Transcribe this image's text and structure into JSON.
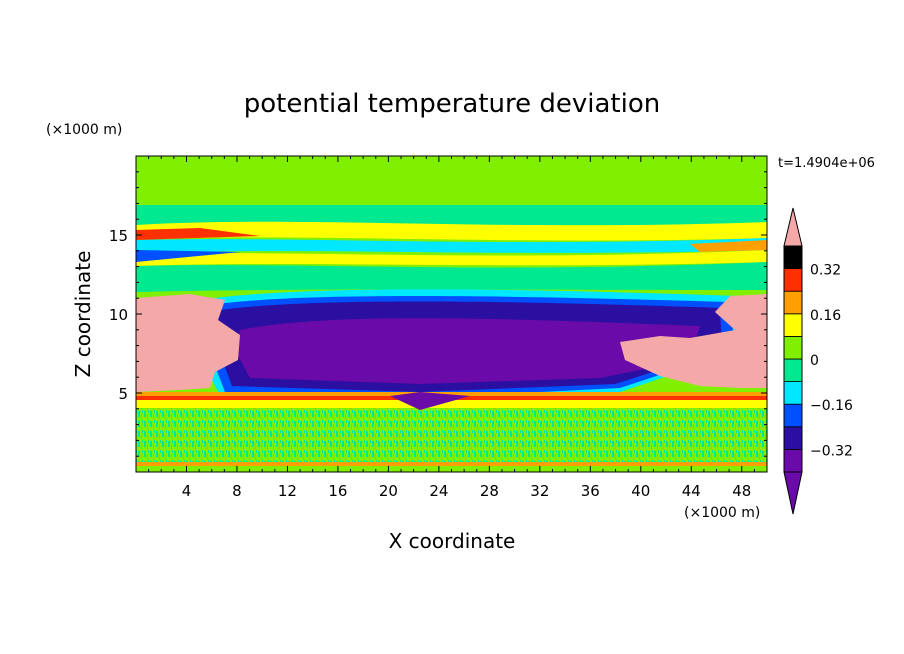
{
  "chart_data": {
    "type": "heatmap",
    "title": "potential temperature deviation",
    "xlabel": "X coordinate",
    "ylabel": "Z coordinate",
    "x_unit": "(×1000 m)",
    "y_unit": "(×1000 m)",
    "time_label": "t=1.4904e+06",
    "xlim": [
      0,
      50
    ],
    "ylim": [
      0,
      20
    ],
    "x_ticks": [
      4,
      8,
      12,
      16,
      20,
      24,
      28,
      32,
      36,
      40,
      44,
      48
    ],
    "y_ticks": [
      5,
      10,
      15
    ],
    "colorbar": {
      "levels": [
        -0.4,
        -0.32,
        -0.24,
        -0.16,
        -0.08,
        0,
        0.08,
        0.16,
        0.24,
        0.32,
        0.4
      ],
      "colors": [
        "#6a0aa8",
        "#2a0fa0",
        "#0050ff",
        "#00e8ff",
        "#00e890",
        "#80f000",
        "#ffff00",
        "#ffa000",
        "#ff3000"
      ],
      "below_color": "#6a0aa8",
      "above_color": "#f4a8a8",
      "tick_labels": [
        "0.32",
        "0.16",
        "0",
        "−0.16",
        "−0.32"
      ],
      "tick_values": [
        0.32,
        0.16,
        0,
        -0.16,
        -0.32
      ]
    }
  }
}
